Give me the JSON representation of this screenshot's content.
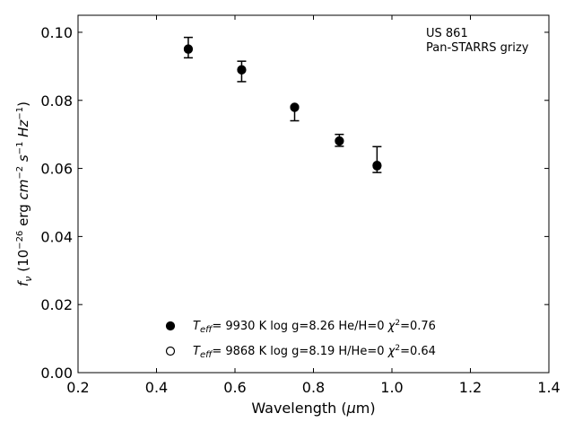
{
  "chart_data": {
    "type": "scatter",
    "xlabel": "Wavelength (μm)",
    "ylabel": "f_ν (10^-26 erg cm^-2 s^-1 Hz^-1)",
    "xlim": [
      0.2,
      1.4
    ],
    "ylim": [
      0.0,
      0.105
    ],
    "xticks": [
      0.2,
      0.4,
      0.6,
      0.8,
      1.0,
      1.2,
      1.4
    ],
    "xtick_labels": [
      "0.2",
      "0.4",
      "0.6",
      "0.8",
      "1.0",
      "1.2",
      "1.4"
    ],
    "yticks": [
      0.0,
      0.02,
      0.04,
      0.06,
      0.08,
      0.1
    ],
    "ytick_labels": [
      "0.00",
      "0.02",
      "0.04",
      "0.06",
      "0.08",
      "0.10"
    ],
    "grid": false,
    "annotation": {
      "object": "US 861",
      "survey": "Pan-STARRS grizy"
    },
    "observed": {
      "x": [
        0.481,
        0.617,
        0.752,
        0.866,
        0.962
      ],
      "y": [
        0.0955,
        0.0885,
        0.0767,
        0.0683,
        0.0628
      ],
      "yerr_low": [
        0.003,
        0.003,
        0.0027,
        0.0018,
        0.004
      ],
      "yerr_high": [
        0.003,
        0.003,
        0.0015,
        0.0017,
        0.0036
      ]
    },
    "series": [
      {
        "name": "T_eff= 9930 K log g=8.26 He/H=0 χ2=0.76",
        "legend": {
          "teff_label": "T",
          "teff_sub": "eff",
          "rest": "=  9930 K  log g=8.26  He/H=0",
          "chi_label": "χ",
          "chi_sup": "2",
          "chi_val": "=0.76"
        },
        "marker": "filled-circle",
        "x": [
          0.481,
          0.617,
          0.752,
          0.866,
          0.962
        ],
        "y": [
          0.095,
          0.0889,
          0.0779,
          0.068,
          0.0607
        ]
      },
      {
        "name": "T_eff= 9868 K log g=8.19 H/He=0 χ2=0.64",
        "legend": {
          "teff_label": "T",
          "teff_sub": "eff",
          "rest": "=  9868 K  log g=8.19  H/He=0",
          "chi_label": "χ",
          "chi_sup": "2",
          "chi_val": "=0.64"
        },
        "marker": "open-circle",
        "x": [
          0.481,
          0.617,
          0.752,
          0.866,
          0.962
        ],
        "y": [
          0.0951,
          0.089,
          0.078,
          0.0681,
          0.0609
        ]
      }
    ],
    "legend_position": "lower-center"
  }
}
